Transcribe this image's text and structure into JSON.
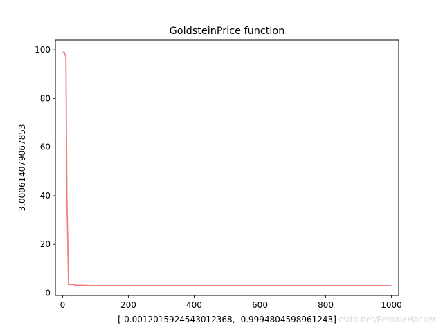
{
  "chart_data": {
    "type": "line",
    "title": "GoldsteinPrice function",
    "xlabel": "[-0.0012015924543012368, -0.9994804598961243]",
    "ylabel": "3.000614079067853",
    "xlim": [
      -22,
      1022
    ],
    "ylim": [
      -1,
      104
    ],
    "xticks": [
      0,
      200,
      400,
      600,
      800,
      1000
    ],
    "yticks": [
      0,
      20,
      40,
      60,
      80,
      100
    ],
    "grid": false,
    "line_color": "#f08080",
    "series": [
      {
        "x": [
          0,
          5,
          10,
          13,
          18,
          30,
          35,
          40,
          60,
          80,
          100,
          200,
          300,
          400,
          500,
          600,
          700,
          800,
          900,
          1000
        ],
        "y": [
          99,
          99,
          97,
          40,
          3.5,
          3.5,
          3.3,
          3.2,
          3.15,
          3.05,
          3.02,
          3.01,
          3.01,
          3.0,
          3.0,
          3.0,
          3.0,
          3.0,
          3.0,
          3.0
        ]
      }
    ]
  },
  "watermark": "csdn.net/FemaleHacker"
}
